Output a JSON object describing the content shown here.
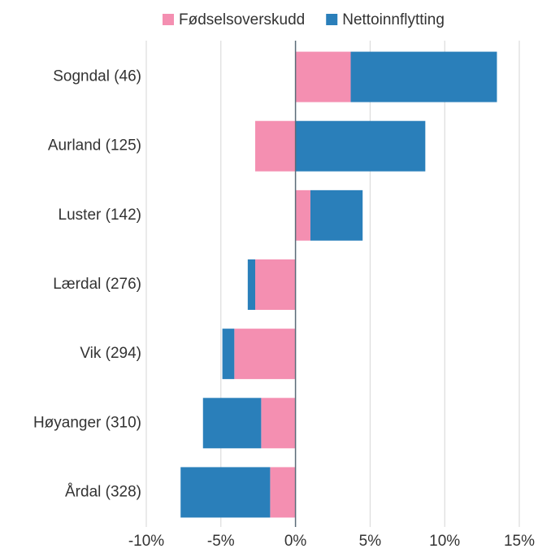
{
  "chart_data": {
    "type": "bar",
    "orientation": "horizontal",
    "stacked": true,
    "categories": [
      "Sogndal (46)",
      "Aurland (125)",
      "Luster (142)",
      "Lærdal (276)",
      "Vik (294)",
      "Høyanger (310)",
      "Årdal (328)"
    ],
    "series": [
      {
        "name": "Fødselsoverskudd",
        "color": "#f48fb1",
        "values": [
          3.7,
          -2.7,
          1.0,
          -2.7,
          -4.1,
          -2.3,
          -1.7
        ]
      },
      {
        "name": "Nettoinnflytting",
        "color": "#2a7fba",
        "values": [
          9.8,
          8.7,
          3.5,
          -0.5,
          -0.8,
          -3.9,
          -6.0
        ]
      }
    ],
    "xlim": [
      -10,
      15
    ],
    "xticks": [
      {
        "value": -10,
        "label": "-10%"
      },
      {
        "value": -5,
        "label": "-5%"
      },
      {
        "value": 0,
        "label": "0%"
      },
      {
        "value": 5,
        "label": "5%"
      },
      {
        "value": 10,
        "label": "10%"
      },
      {
        "value": 15,
        "label": "15%"
      }
    ],
    "grid": true,
    "legend": "top"
  }
}
